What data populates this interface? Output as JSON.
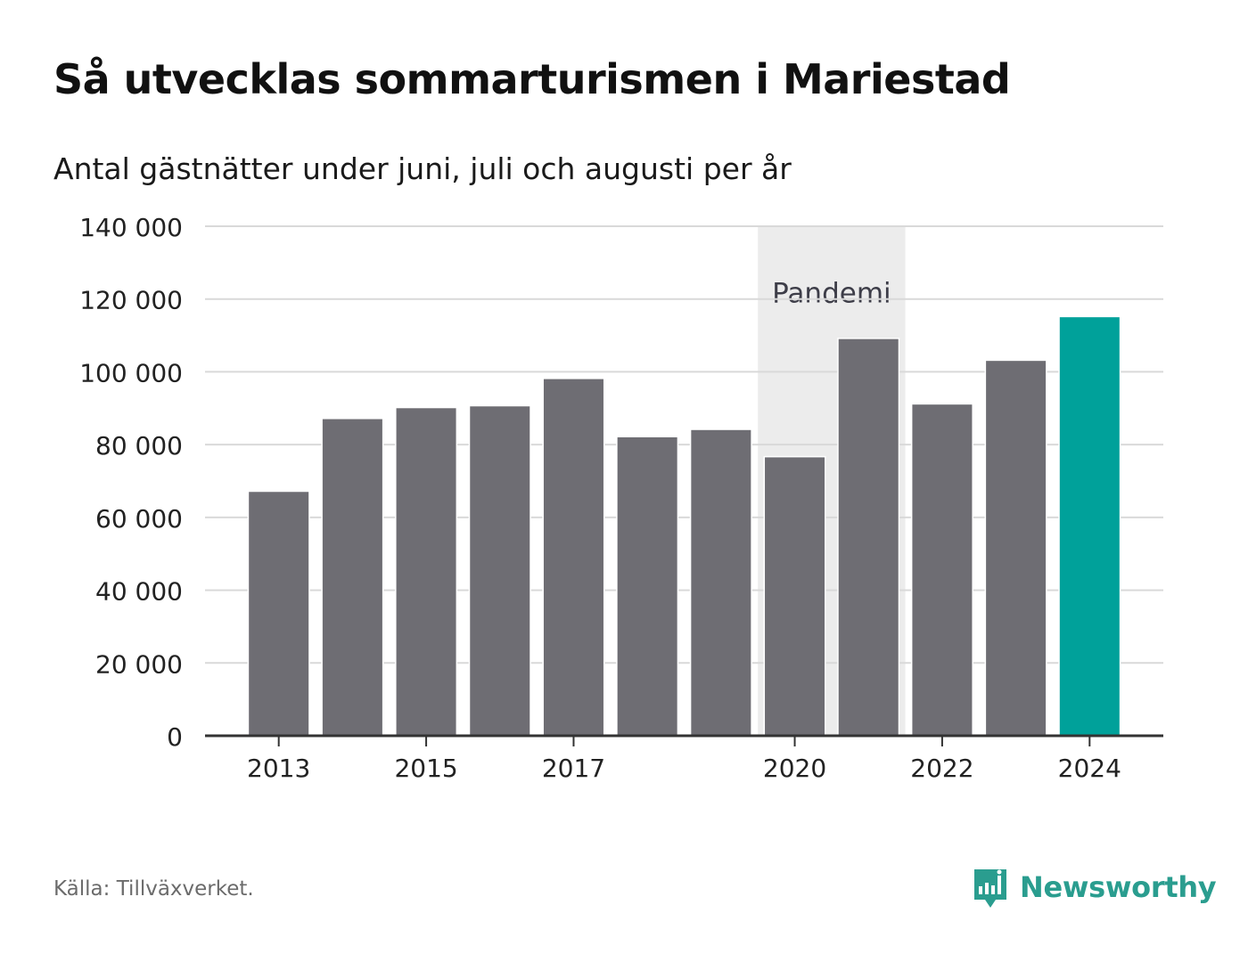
{
  "header": {
    "title": "Så utvecklas sommarturismen i Mariestad",
    "subtitle": "Antal gästnätter under juni, juli och augusti per år"
  },
  "chart_data": {
    "type": "bar",
    "title": "Så utvecklas sommarturismen i Mariestad",
    "subtitle": "Antal gästnätter under juni, juli och augusti per år",
    "categories": [
      "2013",
      "2014",
      "2015",
      "2016",
      "2017",
      "2018",
      "2019",
      "2020",
      "2021",
      "2022",
      "2023",
      "2024"
    ],
    "values": [
      67000,
      87000,
      90000,
      90500,
      98000,
      82000,
      84000,
      76500,
      109000,
      91000,
      103000,
      115000
    ],
    "x_tick_labels": [
      "2013",
      "2015",
      "2017",
      "2020",
      "2022",
      "2024"
    ],
    "y_ticks": [
      0,
      20000,
      40000,
      60000,
      80000,
      100000,
      120000,
      140000
    ],
    "y_tick_labels": [
      "0",
      "20 000",
      "40 000",
      "60 000",
      "80 000",
      "100 000",
      "120 000",
      "140 000"
    ],
    "ylim": [
      0,
      140000
    ],
    "xlabel": "",
    "ylabel": "",
    "grid": "horizontal",
    "bar_color": "#6e6d73",
    "highlight_color": "#00a19a",
    "highlight_category": "2024",
    "annotation": {
      "label": "Pandemi",
      "from": "2020",
      "to": "2021",
      "color": "#ececec"
    }
  },
  "footer": {
    "source": "Källa: Tillväxverket.",
    "logo_text": "Newsworthy",
    "logo_color": "#2a9d8f",
    "logo_icon": "newsworthy-chart-bubble-icon"
  }
}
